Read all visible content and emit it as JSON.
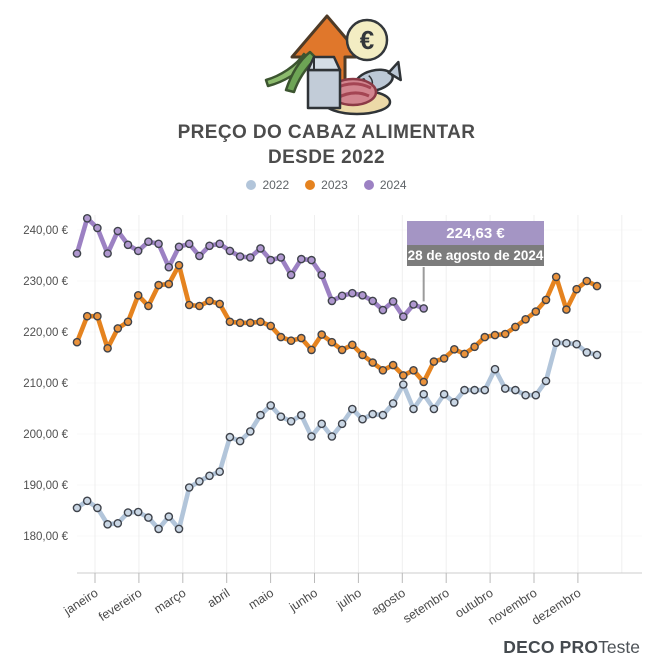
{
  "title": {
    "line1": "PREÇO DO CABAZ ALIMENTAR",
    "line2": "DESDE 2022"
  },
  "icon": {
    "name": "food-basket-price-increase",
    "coin_symbol": "€"
  },
  "legend": [
    {
      "label": "2022",
      "color": "#b2c5da"
    },
    {
      "label": "2023",
      "color": "#e5831f"
    },
    {
      "label": "2024",
      "color": "#9c81c3"
    }
  ],
  "tooltip": {
    "value": "224,63 €",
    "date": "28 de agosto de 2024",
    "header_color": "#a495c4",
    "body_color": "#7c7c7c"
  },
  "logo": {
    "part1": "DECO",
    "part2": "PRO",
    "part3": "Teste"
  },
  "chart_data": {
    "type": "line",
    "title": "PREÇO DO CABAZ ALIMENTAR DESDE 2022",
    "x_unit": "week",
    "x_tick_labels": [
      "janeiro",
      "fevereiro",
      "março",
      "abril",
      "maio",
      "junho",
      "julho",
      "agosto",
      "setembro",
      "outubro",
      "novembro",
      "dezembro"
    ],
    "y_ticks": [
      240,
      230,
      220,
      210,
      200,
      190,
      180
    ],
    "y_tick_labels": [
      "240,00 €",
      "230,00 €",
      "220,00 €",
      "210,00 €",
      "200,00 €",
      "190,00 €",
      "180,00 €"
    ],
    "ylim": [
      175,
      245
    ],
    "grid": "vertical-faint",
    "legend_position": "top-center",
    "highlight": {
      "series": "2024",
      "value": 224.63,
      "date": "28 de agosto de 2024"
    },
    "series": [
      {
        "name": "2022",
        "color": "#b2c5da",
        "marker_fill": "#c9d6e4",
        "values": [
          185.5,
          186.9,
          185.5,
          182.3,
          182.5,
          184.6,
          184.7,
          183.6,
          181.4,
          183.8,
          181.4,
          189.5,
          190.7,
          191.8,
          192.6,
          199.4,
          198.6,
          200.5,
          203.7,
          205.6,
          203.4,
          202.5,
          203.7,
          199.5,
          202.0,
          199.5,
          202.0,
          204.9,
          202.9,
          203.9,
          203.7,
          206.0,
          209.7,
          204.9,
          207.8,
          204.9,
          207.8,
          206.2,
          208.6,
          208.6,
          208.6,
          212.7,
          208.9,
          208.6,
          207.6,
          207.6,
          210.4,
          217.9,
          217.8,
          217.6,
          216.0,
          215.5
        ]
      },
      {
        "name": "2023",
        "color": "#e5831f",
        "marker_fill": "#ea923b",
        "values": [
          218.0,
          223.1,
          223.1,
          216.8,
          220.7,
          222.0,
          227.2,
          225.1,
          229.2,
          229.4,
          233.1,
          225.3,
          225.1,
          226.1,
          225.5,
          222.0,
          221.8,
          221.8,
          222.0,
          221.2,
          219.0,
          218.3,
          218.8,
          216.5,
          219.5,
          218.0,
          216.5,
          217.5,
          215.5,
          214.0,
          212.5,
          213.5,
          211.5,
          212.5,
          210.2,
          214.2,
          214.8,
          216.6,
          215.7,
          217.1,
          219.0,
          219.4,
          219.6,
          221.0,
          222.5,
          224.0,
          226.3,
          230.8,
          224.4,
          228.4,
          230.0,
          229.0
        ]
      },
      {
        "name": "2024",
        "color": "#9c81c3",
        "marker_fill": "#af97cf",
        "values": [
          235.4,
          242.3,
          240.4,
          235.4,
          239.8,
          237.1,
          235.9,
          237.7,
          237.3,
          232.7,
          236.7,
          237.3,
          234.9,
          236.9,
          237.3,
          235.9,
          234.8,
          234.6,
          236.4,
          234.1,
          234.6,
          231.2,
          234.3,
          234.1,
          231.2,
          226.1,
          227.1,
          227.6,
          227.2,
          226.1,
          224.3,
          226.0,
          223.0,
          225.4,
          224.63
        ]
      }
    ]
  }
}
